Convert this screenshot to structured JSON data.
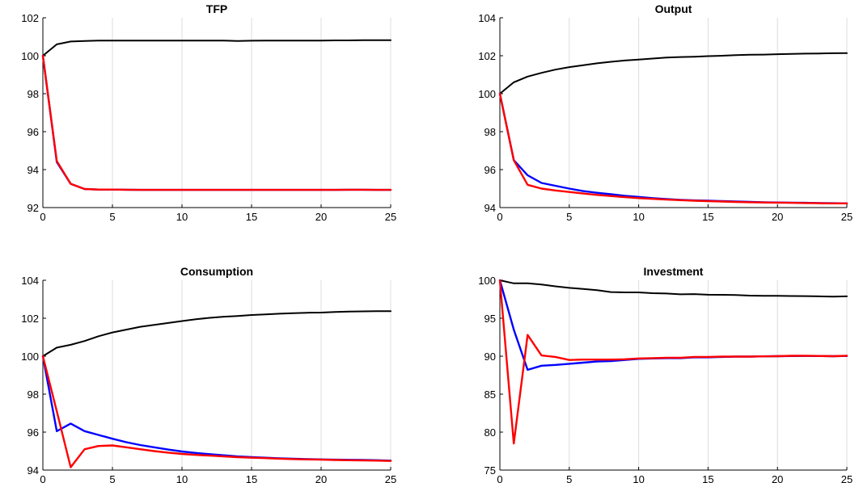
{
  "chart_data": [
    {
      "type": "line",
      "title": "TFP",
      "xlabel": "",
      "ylabel": "",
      "xlim": [
        0,
        25
      ],
      "ylim": [
        92,
        102
      ],
      "xticks": [
        0,
        5,
        10,
        15,
        20,
        25
      ],
      "yticks": [
        92,
        94,
        96,
        98,
        100,
        102
      ],
      "grid": "x-only",
      "series": [
        {
          "color": "#000000",
          "x": [
            0,
            1,
            2,
            3,
            4,
            5,
            6,
            7,
            8,
            9,
            10,
            11,
            12,
            13,
            14,
            15,
            16,
            17,
            18,
            19,
            20,
            21,
            22,
            23,
            24,
            25
          ],
          "values": [
            100,
            100.6,
            100.75,
            100.78,
            100.8,
            100.8,
            100.8,
            100.8,
            100.8,
            100.8,
            100.8,
            100.8,
            100.8,
            100.8,
            100.78,
            100.79,
            100.8,
            100.8,
            100.8,
            100.8,
            100.8,
            100.81,
            100.81,
            100.82,
            100.82,
            100.82
          ]
        },
        {
          "color": "#0000ff",
          "x": [
            0,
            1,
            2,
            3,
            4,
            5,
            6,
            7,
            8,
            9,
            10,
            11,
            12,
            13,
            14,
            15,
            16,
            17,
            18,
            19,
            20,
            21,
            22,
            23,
            24,
            25
          ],
          "values": [
            100,
            94.4,
            93.25,
            92.98,
            92.95,
            92.95,
            92.94,
            92.93,
            92.93,
            92.93,
            92.93,
            92.93,
            92.93,
            92.93,
            92.93,
            92.93,
            92.93,
            92.93,
            92.93,
            92.93,
            92.93,
            92.93,
            92.94,
            92.94,
            92.93,
            92.93
          ]
        },
        {
          "color": "#ff0000",
          "x": [
            0,
            1,
            2,
            3,
            4,
            5,
            6,
            7,
            8,
            9,
            10,
            11,
            12,
            13,
            14,
            15,
            16,
            17,
            18,
            19,
            20,
            21,
            22,
            23,
            24,
            25
          ],
          "values": [
            100,
            94.45,
            93.25,
            92.98,
            92.95,
            92.95,
            92.94,
            92.93,
            92.93,
            92.93,
            92.93,
            92.93,
            92.93,
            92.93,
            92.93,
            92.93,
            92.93,
            92.93,
            92.93,
            92.93,
            92.93,
            92.93,
            92.94,
            92.94,
            92.93,
            92.93
          ]
        }
      ]
    },
    {
      "type": "line",
      "title": "Output",
      "xlabel": "",
      "ylabel": "",
      "xlim": [
        0,
        25
      ],
      "ylim": [
        94,
        104
      ],
      "xticks": [
        0,
        5,
        10,
        15,
        20,
        25
      ],
      "yticks": [
        94,
        96,
        98,
        100,
        102,
        104
      ],
      "grid": "x-only",
      "series": [
        {
          "color": "#000000",
          "x": [
            0,
            1,
            2,
            3,
            4,
            5,
            6,
            7,
            8,
            9,
            10,
            11,
            12,
            13,
            14,
            15,
            16,
            17,
            18,
            19,
            20,
            21,
            22,
            23,
            24,
            25
          ],
          "values": [
            100,
            100.6,
            100.9,
            101.1,
            101.27,
            101.4,
            101.5,
            101.6,
            101.68,
            101.75,
            101.8,
            101.85,
            101.9,
            101.93,
            101.95,
            101.98,
            102.0,
            102.03,
            102.05,
            102.06,
            102.08,
            102.1,
            102.11,
            102.12,
            102.13,
            102.14
          ]
        },
        {
          "color": "#0000ff",
          "x": [
            0,
            1,
            2,
            3,
            4,
            5,
            6,
            7,
            8,
            9,
            10,
            11,
            12,
            13,
            14,
            15,
            16,
            17,
            18,
            19,
            20,
            21,
            22,
            23,
            24,
            25
          ],
          "values": [
            100,
            96.5,
            95.7,
            95.3,
            95.15,
            95.0,
            94.87,
            94.78,
            94.7,
            94.62,
            94.56,
            94.5,
            94.45,
            94.41,
            94.38,
            94.36,
            94.34,
            94.32,
            94.3,
            94.28,
            94.27,
            94.26,
            94.25,
            94.24,
            94.23,
            94.22
          ]
        },
        {
          "color": "#ff0000",
          "x": [
            0,
            1,
            2,
            3,
            4,
            5,
            6,
            7,
            8,
            9,
            10,
            11,
            12,
            13,
            14,
            15,
            16,
            17,
            18,
            19,
            20,
            21,
            22,
            23,
            24,
            25
          ],
          "values": [
            100,
            96.5,
            95.2,
            95.0,
            94.9,
            94.82,
            94.74,
            94.67,
            94.61,
            94.55,
            94.5,
            94.46,
            94.42,
            94.39,
            94.36,
            94.34,
            94.32,
            94.3,
            94.28,
            94.27,
            94.26,
            94.25,
            94.24,
            94.23,
            94.22,
            94.22
          ]
        }
      ]
    },
    {
      "type": "line",
      "title": "Consumption",
      "xlabel": "",
      "ylabel": "",
      "xlim": [
        0,
        25
      ],
      "ylim": [
        94,
        104
      ],
      "xticks": [
        0,
        5,
        10,
        15,
        20,
        25
      ],
      "yticks": [
        94,
        96,
        98,
        100,
        102,
        104
      ],
      "grid": "x-only",
      "series": [
        {
          "color": "#000000",
          "x": [
            0,
            1,
            2,
            3,
            4,
            5,
            6,
            7,
            8,
            9,
            10,
            11,
            12,
            13,
            14,
            15,
            16,
            17,
            18,
            19,
            20,
            21,
            22,
            23,
            24,
            25
          ],
          "values": [
            100,
            100.45,
            100.6,
            100.8,
            101.05,
            101.25,
            101.4,
            101.55,
            101.65,
            101.75,
            101.85,
            101.95,
            102.02,
            102.08,
            102.12,
            102.17,
            102.2,
            102.24,
            102.27,
            102.29,
            102.3,
            102.33,
            102.35,
            102.36,
            102.37,
            102.37
          ]
        },
        {
          "color": "#0000ff",
          "x": [
            0,
            1,
            2,
            3,
            4,
            5,
            6,
            7,
            8,
            9,
            10,
            11,
            12,
            13,
            14,
            15,
            16,
            17,
            18,
            19,
            20,
            21,
            22,
            23,
            24,
            25
          ],
          "values": [
            100,
            96.05,
            96.45,
            96.05,
            95.85,
            95.65,
            95.47,
            95.32,
            95.2,
            95.08,
            94.98,
            94.9,
            94.84,
            94.78,
            94.72,
            94.68,
            94.65,
            94.62,
            94.6,
            94.58,
            94.56,
            94.55,
            94.54,
            94.53,
            94.52,
            94.5
          ]
        },
        {
          "color": "#ff0000",
          "x": [
            0,
            1,
            2,
            3,
            4,
            5,
            6,
            7,
            8,
            9,
            10,
            11,
            12,
            13,
            14,
            15,
            16,
            17,
            18,
            19,
            20,
            21,
            22,
            23,
            24,
            25
          ],
          "values": [
            100,
            97.1,
            94.15,
            95.1,
            95.27,
            95.3,
            95.2,
            95.1,
            95.0,
            94.92,
            94.85,
            94.8,
            94.76,
            94.72,
            94.68,
            94.65,
            94.63,
            94.6,
            94.58,
            94.56,
            94.55,
            94.53,
            94.52,
            94.51,
            94.5,
            94.48
          ]
        }
      ]
    },
    {
      "type": "line",
      "title": "Investment",
      "xlabel": "",
      "ylabel": "",
      "xlim": [
        0,
        25
      ],
      "ylim": [
        75,
        100
      ],
      "xticks": [
        0,
        5,
        10,
        15,
        20,
        25
      ],
      "yticks": [
        75,
        80,
        85,
        90,
        95,
        100
      ],
      "grid": "x-only",
      "series": [
        {
          "color": "#000000",
          "x": [
            0,
            1,
            2,
            3,
            4,
            5,
            6,
            7,
            8,
            9,
            10,
            11,
            12,
            13,
            14,
            15,
            16,
            17,
            18,
            19,
            20,
            21,
            22,
            23,
            24,
            25
          ],
          "values": [
            100,
            99.6,
            99.6,
            99.45,
            99.2,
            99.0,
            98.85,
            98.7,
            98.45,
            98.4,
            98.4,
            98.3,
            98.25,
            98.15,
            98.18,
            98.1,
            98.08,
            98.05,
            97.98,
            97.95,
            97.95,
            97.93,
            97.92,
            97.88,
            97.85,
            97.88
          ]
        },
        {
          "color": "#0000ff",
          "x": [
            0,
            1,
            2,
            3,
            4,
            5,
            6,
            7,
            8,
            9,
            10,
            11,
            12,
            13,
            14,
            15,
            16,
            17,
            18,
            19,
            20,
            21,
            22,
            23,
            24,
            25
          ],
          "values": [
            100,
            93.5,
            88.2,
            88.75,
            88.85,
            89.0,
            89.15,
            89.3,
            89.35,
            89.5,
            89.65,
            89.7,
            89.75,
            89.75,
            89.85,
            89.85,
            89.9,
            89.95,
            89.95,
            89.98,
            90.0,
            90.02,
            90.03,
            90.02,
            90.0,
            90.03
          ]
        },
        {
          "color": "#ff0000",
          "x": [
            0,
            1,
            2,
            3,
            4,
            5,
            6,
            7,
            8,
            9,
            10,
            11,
            12,
            13,
            14,
            15,
            16,
            17,
            18,
            19,
            20,
            21,
            22,
            23,
            24,
            25
          ],
          "values": [
            100,
            78.5,
            92.8,
            90.1,
            89.9,
            89.5,
            89.55,
            89.55,
            89.55,
            89.6,
            89.7,
            89.75,
            89.8,
            89.8,
            89.9,
            89.9,
            89.95,
            89.95,
            89.95,
            89.98,
            90.0,
            90.05,
            90.05,
            90.03,
            90.0,
            90.05
          ]
        }
      ]
    }
  ]
}
